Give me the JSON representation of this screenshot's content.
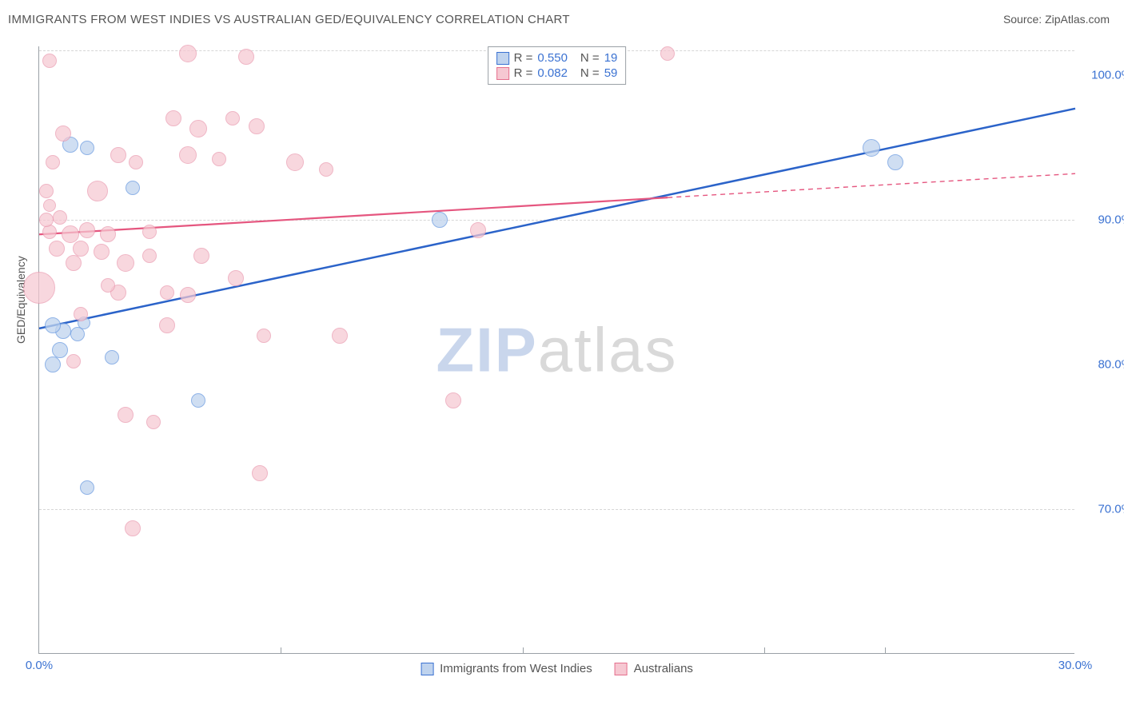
{
  "header": {
    "title": "IMMIGRANTS FROM WEST INDIES VS AUSTRALIAN GED/EQUIVALENCY CORRELATION CHART",
    "source_label": "Source: ",
    "source_value": "ZipAtlas.com"
  },
  "watermark": {
    "part1": "ZIP",
    "part2": "atlas"
  },
  "axes": {
    "ylabel": "GED/Equivalency",
    "xlim": [
      0.0,
      30.0
    ],
    "ylim": [
      60.0,
      102.0
    ],
    "xticks": [
      0.0,
      30.0
    ],
    "xtick_labels": [
      "0.0%",
      "30.0%"
    ],
    "xtick_minor": [
      7.0,
      14.0,
      21.0,
      24.5
    ],
    "yticks": [
      70.0,
      80.0,
      90.0,
      100.0
    ],
    "ytick_labels": [
      "70.0%",
      "80.0%",
      "90.0%",
      "100.0%"
    ],
    "grid_y": [
      70.0,
      90.0,
      101.7
    ],
    "grid_color": "#d6d6d6",
    "axis_color": "#9aa0a6",
    "label_color": "#555555",
    "tick_label_color": "#3b72d2"
  },
  "legend_top": {
    "rows": [
      {
        "swatch_fill": "#bfd3ee",
        "swatch_border": "#3b72d2",
        "r_label": "R =",
        "r_value": "0.550",
        "n_label": "N =",
        "n_value": "19"
      },
      {
        "swatch_fill": "#f6c8d2",
        "swatch_border": "#e5708e",
        "r_label": "R =",
        "r_value": "0.082",
        "n_label": "N =",
        "n_value": "59"
      }
    ]
  },
  "legend_bottom": {
    "items": [
      {
        "swatch_fill": "#bfd3ee",
        "swatch_border": "#3b72d2",
        "label": "Immigrants from West Indies"
      },
      {
        "swatch_fill": "#f6c8d2",
        "swatch_border": "#e5708e",
        "label": "Australians"
      }
    ]
  },
  "series": {
    "blue": {
      "fill": "#bfd3ee",
      "border": "#6a9ae0",
      "opacity": 0.75,
      "regression": {
        "x1": 0.0,
        "y1": 82.5,
        "x2": 30.0,
        "y2": 97.7,
        "color": "#2b63c9",
        "width": 2.5,
        "dash_after_x": null
      },
      "points": [
        {
          "x": 0.9,
          "y": 95.2,
          "r": 10
        },
        {
          "x": 1.4,
          "y": 95.0,
          "r": 9
        },
        {
          "x": 2.7,
          "y": 92.2,
          "r": 9
        },
        {
          "x": 0.4,
          "y": 82.7,
          "r": 10
        },
        {
          "x": 0.7,
          "y": 82.3,
          "r": 10
        },
        {
          "x": 1.1,
          "y": 82.1,
          "r": 9
        },
        {
          "x": 0.6,
          "y": 81.0,
          "r": 10
        },
        {
          "x": 1.3,
          "y": 82.9,
          "r": 8
        },
        {
          "x": 0.4,
          "y": 80.0,
          "r": 10
        },
        {
          "x": 2.1,
          "y": 80.5,
          "r": 9
        },
        {
          "x": 4.6,
          "y": 77.5,
          "r": 9
        },
        {
          "x": 1.4,
          "y": 71.5,
          "r": 9
        },
        {
          "x": 11.6,
          "y": 90.0,
          "r": 10
        },
        {
          "x": 24.1,
          "y": 95.0,
          "r": 11
        },
        {
          "x": 24.8,
          "y": 94.0,
          "r": 10
        }
      ]
    },
    "pink": {
      "fill": "#f6c8d2",
      "border": "#ea9ab0",
      "opacity": 0.72,
      "regression": {
        "x1": 0.0,
        "y1": 89.0,
        "x2": 30.0,
        "y2": 93.2,
        "color": "#e5567f",
        "width": 2.2,
        "dash_after_x": 18.2
      },
      "points": [
        {
          "x": 0.3,
          "y": 101.0,
          "r": 9
        },
        {
          "x": 4.3,
          "y": 101.5,
          "r": 11
        },
        {
          "x": 6.0,
          "y": 101.3,
          "r": 10
        },
        {
          "x": 18.2,
          "y": 101.5,
          "r": 9
        },
        {
          "x": 0.7,
          "y": 96.0,
          "r": 10
        },
        {
          "x": 3.9,
          "y": 97.0,
          "r": 10
        },
        {
          "x": 4.6,
          "y": 96.3,
          "r": 11
        },
        {
          "x": 5.6,
          "y": 97.0,
          "r": 9
        },
        {
          "x": 6.3,
          "y": 96.5,
          "r": 10
        },
        {
          "x": 0.4,
          "y": 94.0,
          "r": 9
        },
        {
          "x": 2.3,
          "y": 94.5,
          "r": 10
        },
        {
          "x": 2.8,
          "y": 94.0,
          "r": 9
        },
        {
          "x": 4.3,
          "y": 94.5,
          "r": 11
        },
        {
          "x": 5.2,
          "y": 94.2,
          "r": 9
        },
        {
          "x": 7.4,
          "y": 94.0,
          "r": 11
        },
        {
          "x": 8.3,
          "y": 93.5,
          "r": 9
        },
        {
          "x": 0.2,
          "y": 92.0,
          "r": 9
        },
        {
          "x": 1.7,
          "y": 92.0,
          "r": 13
        },
        {
          "x": 0.3,
          "y": 91.0,
          "r": 8
        },
        {
          "x": 0.2,
          "y": 90.0,
          "r": 9
        },
        {
          "x": 0.6,
          "y": 90.2,
          "r": 9
        },
        {
          "x": 0.3,
          "y": 89.2,
          "r": 9
        },
        {
          "x": 0.9,
          "y": 89.0,
          "r": 11
        },
        {
          "x": 1.4,
          "y": 89.3,
          "r": 10
        },
        {
          "x": 2.0,
          "y": 89.0,
          "r": 10
        },
        {
          "x": 3.2,
          "y": 89.2,
          "r": 9
        },
        {
          "x": 12.7,
          "y": 89.3,
          "r": 10
        },
        {
          "x": 0.5,
          "y": 88.0,
          "r": 10
        },
        {
          "x": 1.2,
          "y": 88.0,
          "r": 10
        },
        {
          "x": 1.8,
          "y": 87.8,
          "r": 10
        },
        {
          "x": 1.0,
          "y": 87.0,
          "r": 10
        },
        {
          "x": 2.5,
          "y": 87.0,
          "r": 11
        },
        {
          "x": 3.2,
          "y": 87.5,
          "r": 9
        },
        {
          "x": 4.7,
          "y": 87.5,
          "r": 10
        },
        {
          "x": 0.0,
          "y": 85.3,
          "r": 20
        },
        {
          "x": 2.0,
          "y": 85.5,
          "r": 9
        },
        {
          "x": 2.3,
          "y": 85.0,
          "r": 10
        },
        {
          "x": 3.7,
          "y": 85.0,
          "r": 9
        },
        {
          "x": 4.3,
          "y": 84.8,
          "r": 10
        },
        {
          "x": 5.7,
          "y": 86.0,
          "r": 10
        },
        {
          "x": 1.2,
          "y": 83.5,
          "r": 9
        },
        {
          "x": 3.7,
          "y": 82.7,
          "r": 10
        },
        {
          "x": 6.5,
          "y": 82.0,
          "r": 9
        },
        {
          "x": 8.7,
          "y": 82.0,
          "r": 10
        },
        {
          "x": 1.0,
          "y": 80.2,
          "r": 9
        },
        {
          "x": 2.5,
          "y": 76.5,
          "r": 10
        },
        {
          "x": 3.3,
          "y": 76.0,
          "r": 9
        },
        {
          "x": 12.0,
          "y": 77.5,
          "r": 10
        },
        {
          "x": 6.4,
          "y": 72.5,
          "r": 10
        },
        {
          "x": 2.7,
          "y": 68.7,
          "r": 10
        }
      ]
    }
  }
}
